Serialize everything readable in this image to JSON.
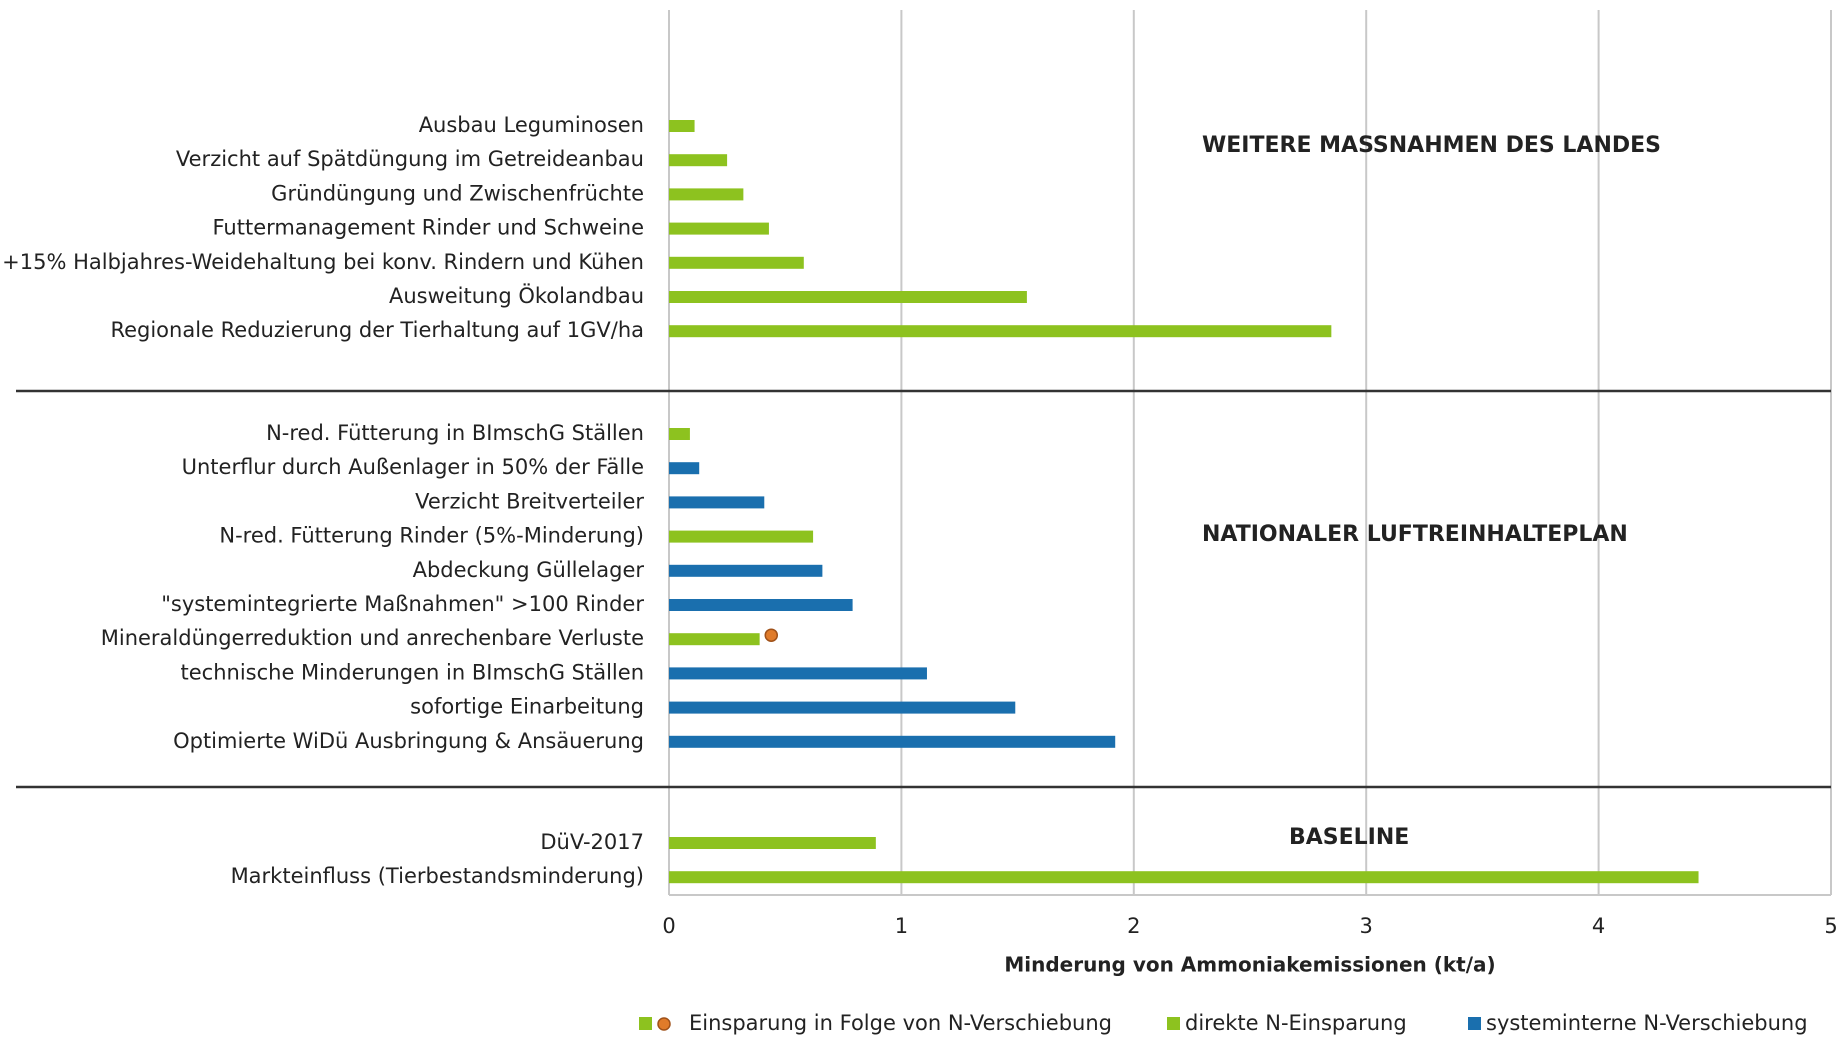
{
  "chart_data": {
    "type": "bar",
    "orientation": "horizontal",
    "x_label": "Minderung von Ammoniakemissionen (kt/a)",
    "xlim": [
      0,
      5
    ],
    "xticks": [
      0,
      1,
      2,
      3,
      4,
      5
    ],
    "grid": true,
    "legend": "bottom",
    "series": [
      {
        "name": "Einsparung in Folge von N-Verschiebung",
        "color": "#e07b2a",
        "marker": "circle"
      },
      {
        "name": "direkte N-Einsparung",
        "color": "#8dc21f"
      },
      {
        "name": "systeminterne N-Verschiebung",
        "color": "#1a6fae"
      }
    ],
    "groups": [
      {
        "label": "WEITERE MASSNAHMEN DES LANDES",
        "categories": [
          "Ausbau Leguminosen",
          "Verzicht auf Spätdüngung im Getreideanbau",
          "Gründüngung und Zwischenfrüchte",
          "Futtermanagement Rinder und Schweine",
          "+15% Halbjahres-Weidehaltung bei konv. Rindern und Kühen",
          "Ausweitung Ökolandbau",
          "Regionale Reduzierung der Tierhaltung auf 1GV/ha"
        ],
        "series_values": [
          [
            null,
            null,
            null,
            null,
            null,
            null,
            null
          ],
          [
            0.11,
            0.25,
            0.32,
            0.43,
            0.58,
            1.54,
            2.85
          ],
          [
            null,
            null,
            null,
            null,
            null,
            null,
            null
          ]
        ]
      },
      {
        "label": "NATIONALER LUFTREINHALTEPLAN",
        "categories": [
          "N-red. Fütterung in BImschG Ställen",
          "Unterflur durch Außenlager in 50% der Fälle",
          "Verzicht Breitverteiler",
          "N-red. Fütterung Rinder (5%-Minderung)",
          "Abdeckung Güllelager",
          "\"systemintegrierte Maßnahmen\" >100 Rinder",
          "Mineraldüngerreduktion und anrechenbare Verluste",
          "technische Minderungen in BImschG Ställen",
          "sofortige Einarbeitung",
          "Optimierte WiDü Ausbringung & Ansäuerung"
        ],
        "series_values": [
          [
            null,
            null,
            null,
            null,
            null,
            null,
            0.44,
            null,
            null,
            null
          ],
          [
            0.09,
            null,
            null,
            0.62,
            null,
            null,
            0.39,
            null,
            null,
            null
          ],
          [
            null,
            0.13,
            0.41,
            null,
            0.66,
            0.79,
            null,
            1.11,
            1.49,
            1.92
          ]
        ]
      },
      {
        "label": "BASELINE",
        "categories": [
          "DüV-2017",
          "Markteinfluss (Tierbestandsminderung)"
        ],
        "series_values": [
          [
            null,
            null
          ],
          [
            0.89,
            4.43
          ],
          [
            null,
            null
          ]
        ]
      }
    ]
  }
}
